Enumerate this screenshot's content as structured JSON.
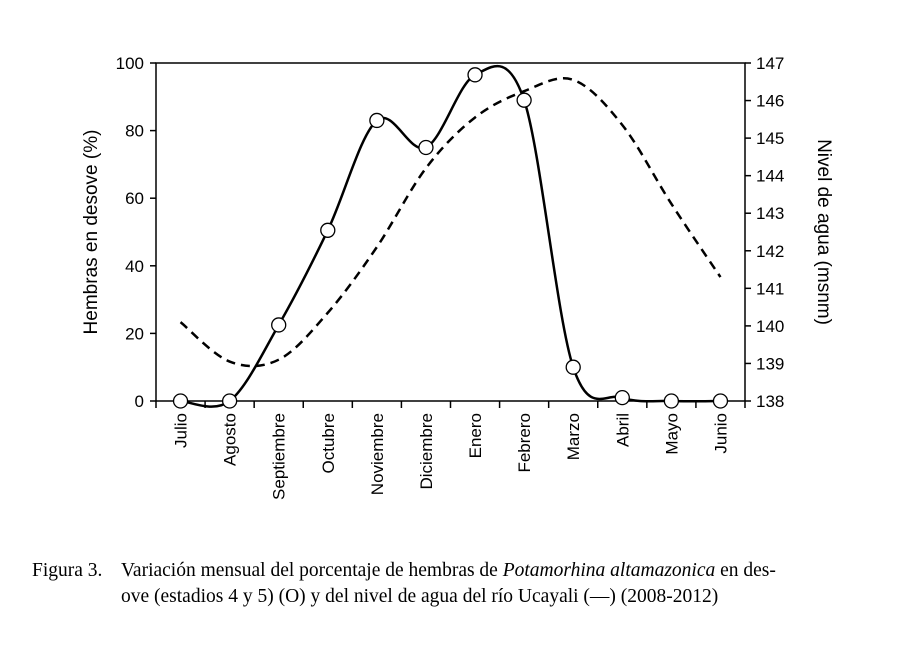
{
  "chart_data": {
    "type": "line",
    "categories": [
      "Julio",
      "Agosto",
      "Septiembre",
      "Octubre",
      "Noviembre",
      "Diciembre",
      "Enero",
      "Febrero",
      "Marzo",
      "Abril",
      "Mayo",
      "Junio"
    ],
    "series": [
      {
        "name": "",
        "axis": "left",
        "style": "solid line with open circle markers",
        "color": "#000000",
        "values": [
          0,
          0,
          22.5,
          50.5,
          83,
          75,
          96.5,
          89,
          10,
          1,
          0,
          0
        ]
      },
      {
        "name": "",
        "axis": "right",
        "style": "dashed line",
        "color": "#000000",
        "values": [
          140.1,
          139.05,
          139.1,
          140.35,
          142.1,
          144.2,
          145.55,
          146.25,
          146.55,
          145.35,
          143.25,
          141.3
        ]
      }
    ],
    "ylabel": "Hembras en desove (%)",
    "ylim": [
      0,
      100
    ],
    "yticks": [
      "0",
      "20",
      "40",
      "60",
      "80",
      "100"
    ],
    "y2label": "Nivel de agua (msnm)",
    "y2lim": [
      138,
      147
    ],
    "y2ticks": [
      "138",
      "139",
      "140",
      "141",
      "142",
      "143",
      "144",
      "145",
      "146",
      "147"
    ],
    "grid": false,
    "legend": "none"
  },
  "caption": {
    "label": "Figura 3.",
    "text_before": "Variación mensual del porcentaje de hembras de ",
    "species": "Potamorhina altamazonica",
    "text_after": " en des-",
    "line2": "ove (estadios 4 y 5) (O) y del nivel de agua del río Ucayali (—) (2008-2012)"
  }
}
